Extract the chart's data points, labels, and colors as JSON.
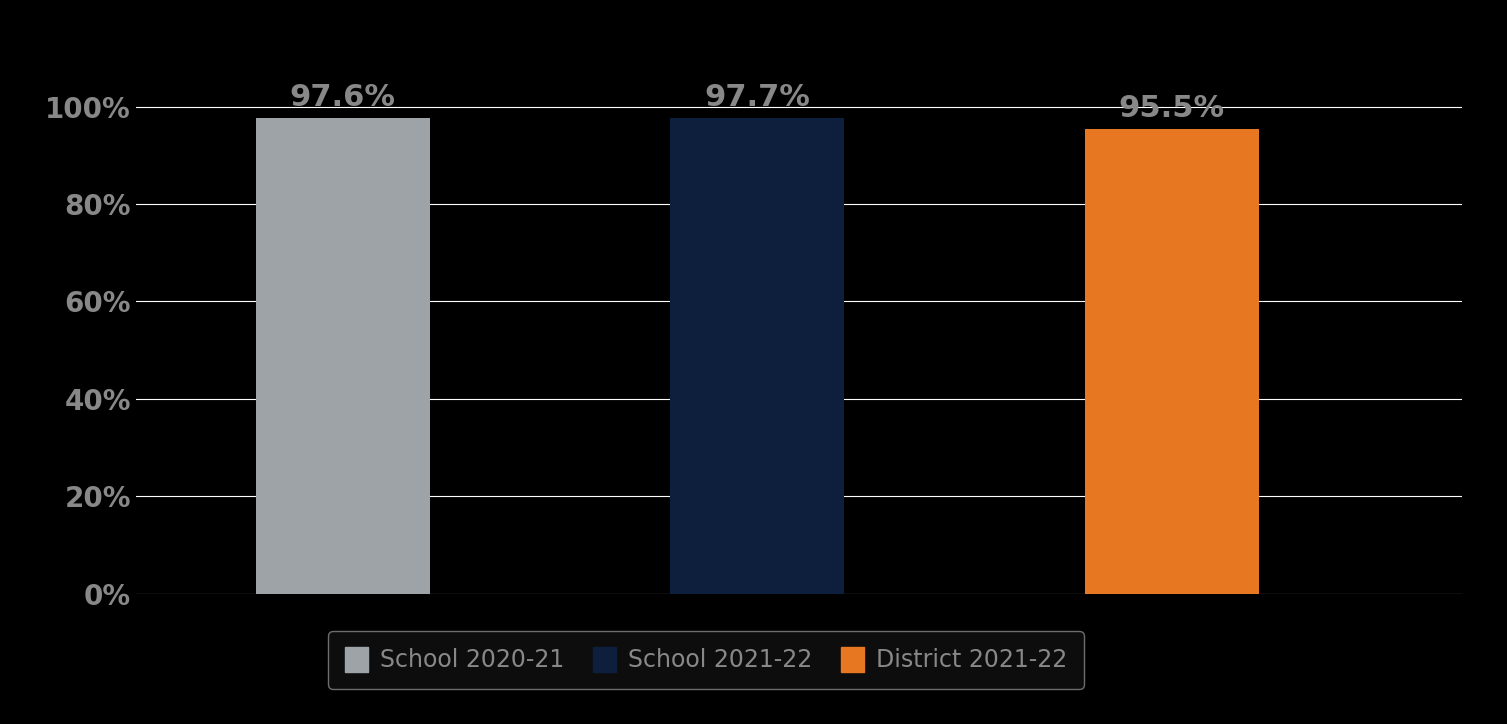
{
  "categories": [
    "School 2020-21",
    "School 2021-22",
    "District 2021-22"
  ],
  "values": [
    97.6,
    97.7,
    95.5
  ],
  "bar_colors": [
    "#9EA3A8",
    "#0D1F3C",
    "#E87722"
  ],
  "value_labels": [
    "97.6%",
    "97.7%",
    "95.5%"
  ],
  "background_color": "#000000",
  "text_color": "#888888",
  "grid_color": "#FFFFFF",
  "ylim": [
    0,
    110
  ],
  "yticks": [
    0,
    20,
    40,
    60,
    80,
    100
  ],
  "ytick_labels": [
    "0%",
    "20%",
    "40%",
    "60%",
    "80%",
    "100%"
  ],
  "bar_label_fontsize": 22,
  "tick_fontsize": 20,
  "legend_fontsize": 17,
  "legend_edge_color": "#888888",
  "legend_face_color": "#111111",
  "bar_width": 0.42
}
